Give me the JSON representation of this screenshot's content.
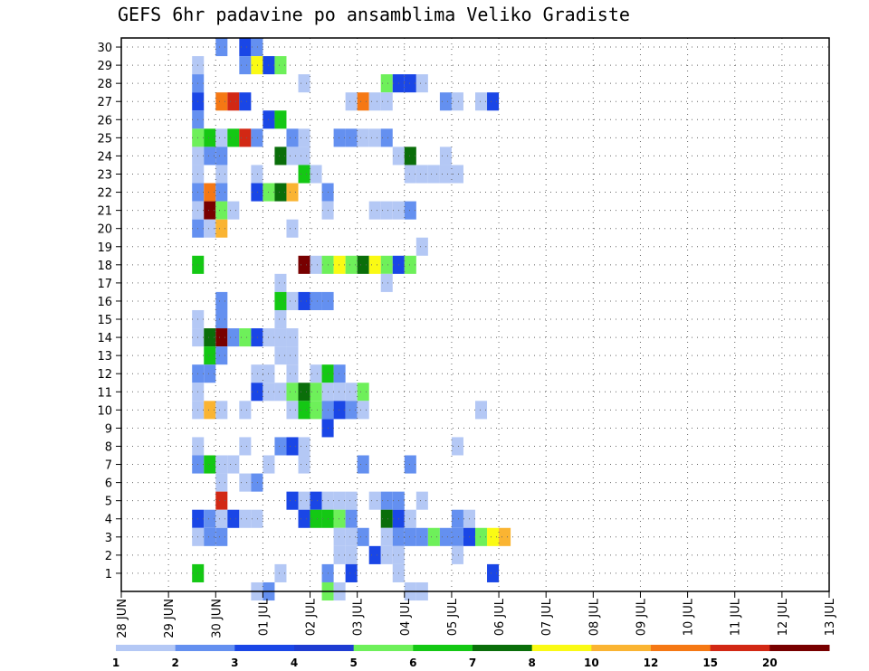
{
  "chart_data": {
    "type": "heatmap",
    "title": "GEFS 6hr padavine po ansamblima Veliko Gradiste",
    "xlabel": "",
    "ylabel": "",
    "x_tick_labels": [
      "28 JUN",
      "29 JUN",
      "30 JUN",
      "01 JUL",
      "02 JUL",
      "03 JUL",
      "04 JUL",
      "05 JUL",
      "06 JUL",
      "07 JUL",
      "08 JUL",
      "09 JUL",
      "10 JUL",
      "11 JUL",
      "12 JUL",
      "13 JUL"
    ],
    "y_tick_labels": [
      "1",
      "2",
      "3",
      "4",
      "5",
      "6",
      "7",
      "8",
      "9",
      "10",
      "11",
      "12",
      "13",
      "14",
      "15",
      "16",
      "17",
      "18",
      "19",
      "20",
      "21",
      "22",
      "23",
      "24",
      "25",
      "26",
      "27",
      "28",
      "29",
      "30"
    ],
    "time_steps_per_day": 4,
    "ylim": [
      0,
      30
    ],
    "grid": true,
    "legend": {
      "placement": "bottom",
      "levels": [
        "1",
        "2",
        "3",
        "4",
        "5",
        "6",
        "7",
        "8",
        "10",
        "12",
        "15",
        "20"
      ],
      "colors": [
        "#b4c8f5",
        "#6490f0",
        "#1a46e6",
        "#1e3cd2",
        "#6ef05a",
        "#14c814",
        "#0a6e0a",
        "#fafa14",
        "#fab432",
        "#f57814",
        "#d22814",
        "#780000"
      ]
    },
    "cells": [
      [
        30,
        8,
        2
      ],
      [
        30,
        10,
        3
      ],
      [
        30,
        11,
        2
      ],
      [
        29,
        6,
        1
      ],
      [
        29,
        10,
        2
      ],
      [
        29,
        11,
        8
      ],
      [
        29,
        12,
        3
      ],
      [
        29,
        13,
        5
      ],
      [
        28,
        6,
        2
      ],
      [
        28,
        15,
        1
      ],
      [
        28,
        22,
        5
      ],
      [
        28,
        23,
        3
      ],
      [
        28,
        24,
        3
      ],
      [
        28,
        25,
        1
      ],
      [
        27,
        6,
        3
      ],
      [
        27,
        8,
        12
      ],
      [
        27,
        9,
        15
      ],
      [
        27,
        10,
        3
      ],
      [
        27,
        19,
        1
      ],
      [
        27,
        20,
        12
      ],
      [
        27,
        21,
        1
      ],
      [
        27,
        22,
        1
      ],
      [
        27,
        27,
        2
      ],
      [
        27,
        28,
        1
      ],
      [
        27,
        30,
        1
      ],
      [
        27,
        31,
        3
      ],
      [
        26,
        6,
        2
      ],
      [
        26,
        12,
        3
      ],
      [
        26,
        13,
        6
      ],
      [
        25,
        6,
        5
      ],
      [
        25,
        7,
        6
      ],
      [
        25,
        8,
        1
      ],
      [
        25,
        9,
        6
      ],
      [
        25,
        10,
        15
      ],
      [
        25,
        11,
        2
      ],
      [
        25,
        14,
        2
      ],
      [
        25,
        15,
        1
      ],
      [
        25,
        18,
        2
      ],
      [
        25,
        19,
        2
      ],
      [
        25,
        20,
        1
      ],
      [
        25,
        21,
        1
      ],
      [
        25,
        22,
        2
      ],
      [
        24,
        6,
        1
      ],
      [
        24,
        7,
        2
      ],
      [
        24,
        8,
        2
      ],
      [
        24,
        13,
        7
      ],
      [
        24,
        14,
        1
      ],
      [
        24,
        15,
        1
      ],
      [
        24,
        23,
        1
      ],
      [
        24,
        24,
        7
      ],
      [
        24,
        27,
        1
      ],
      [
        23,
        6,
        1
      ],
      [
        23,
        8,
        1
      ],
      [
        23,
        11,
        1
      ],
      [
        23,
        15,
        6
      ],
      [
        23,
        16,
        1
      ],
      [
        23,
        24,
        1
      ],
      [
        23,
        25,
        1
      ],
      [
        23,
        26,
        1
      ],
      [
        23,
        27,
        1
      ],
      [
        23,
        28,
        1
      ],
      [
        22,
        6,
        2
      ],
      [
        22,
        7,
        12
      ],
      [
        22,
        8,
        2
      ],
      [
        22,
        11,
        3
      ],
      [
        22,
        12,
        5
      ],
      [
        22,
        13,
        7
      ],
      [
        22,
        14,
        10
      ],
      [
        22,
        17,
        2
      ],
      [
        21,
        6,
        1
      ],
      [
        21,
        7,
        20
      ],
      [
        21,
        8,
        5
      ],
      [
        21,
        9,
        1
      ],
      [
        21,
        17,
        1
      ],
      [
        21,
        21,
        1
      ],
      [
        21,
        22,
        1
      ],
      [
        21,
        23,
        1
      ],
      [
        21,
        24,
        2
      ],
      [
        20,
        6,
        2
      ],
      [
        20,
        7,
        1
      ],
      [
        20,
        8,
        10
      ],
      [
        20,
        14,
        1
      ],
      [
        19,
        25,
        1
      ],
      [
        18,
        6,
        6
      ],
      [
        18,
        15,
        20
      ],
      [
        18,
        16,
        1
      ],
      [
        18,
        17,
        5
      ],
      [
        18,
        18,
        8
      ],
      [
        18,
        19,
        5
      ],
      [
        18,
        20,
        7
      ],
      [
        18,
        21,
        8
      ],
      [
        18,
        22,
        5
      ],
      [
        18,
        23,
        3
      ],
      [
        18,
        24,
        5
      ],
      [
        17,
        13,
        1
      ],
      [
        17,
        22,
        1
      ],
      [
        16,
        8,
        2
      ],
      [
        16,
        13,
        6
      ],
      [
        16,
        14,
        1
      ],
      [
        16,
        15,
        3
      ],
      [
        16,
        16,
        2
      ],
      [
        16,
        17,
        2
      ],
      [
        15,
        6,
        1
      ],
      [
        15,
        8,
        2
      ],
      [
        15,
        13,
        1
      ],
      [
        14,
        6,
        1
      ],
      [
        14,
        7,
        7
      ],
      [
        14,
        8,
        20
      ],
      [
        14,
        9,
        2
      ],
      [
        14,
        10,
        5
      ],
      [
        14,
        11,
        3
      ],
      [
        14,
        12,
        1
      ],
      [
        14,
        13,
        1
      ],
      [
        14,
        14,
        1
      ],
      [
        13,
        7,
        6
      ],
      [
        13,
        8,
        2
      ],
      [
        13,
        13,
        1
      ],
      [
        13,
        14,
        1
      ],
      [
        12,
        6,
        2
      ],
      [
        12,
        7,
        2
      ],
      [
        12,
        11,
        1
      ],
      [
        12,
        12,
        1
      ],
      [
        12,
        14,
        1
      ],
      [
        12,
        16,
        1
      ],
      [
        12,
        17,
        6
      ],
      [
        12,
        18,
        2
      ],
      [
        11,
        6,
        1
      ],
      [
        11,
        11,
        3
      ],
      [
        11,
        12,
        1
      ],
      [
        11,
        13,
        1
      ],
      [
        11,
        14,
        5
      ],
      [
        11,
        15,
        7
      ],
      [
        11,
        16,
        5
      ],
      [
        11,
        17,
        1
      ],
      [
        11,
        18,
        1
      ],
      [
        11,
        19,
        1
      ],
      [
        11,
        20,
        5
      ],
      [
        10,
        6,
        1
      ],
      [
        10,
        7,
        10
      ],
      [
        10,
        8,
        1
      ],
      [
        10,
        10,
        1
      ],
      [
        10,
        14,
        1
      ],
      [
        10,
        15,
        6
      ],
      [
        10,
        16,
        5
      ],
      [
        10,
        17,
        2
      ],
      [
        10,
        18,
        3
      ],
      [
        10,
        19,
        2
      ],
      [
        10,
        20,
        1
      ],
      [
        10,
        30,
        1
      ],
      [
        9,
        17,
        3
      ],
      [
        8,
        6,
        1
      ],
      [
        8,
        10,
        1
      ],
      [
        8,
        13,
        2
      ],
      [
        8,
        14,
        3
      ],
      [
        8,
        15,
        1
      ],
      [
        8,
        28,
        1
      ],
      [
        7,
        6,
        2
      ],
      [
        7,
        7,
        6
      ],
      [
        7,
        8,
        1
      ],
      [
        7,
        9,
        1
      ],
      [
        7,
        12,
        1
      ],
      [
        7,
        15,
        1
      ],
      [
        7,
        20,
        2
      ],
      [
        7,
        24,
        2
      ],
      [
        6,
        8,
        1
      ],
      [
        6,
        10,
        1
      ],
      [
        6,
        11,
        2
      ],
      [
        5,
        8,
        15
      ],
      [
        5,
        14,
        3
      ],
      [
        5,
        15,
        1
      ],
      [
        5,
        16,
        3
      ],
      [
        5,
        17,
        1
      ],
      [
        5,
        18,
        1
      ],
      [
        5,
        19,
        1
      ],
      [
        5,
        21,
        1
      ],
      [
        5,
        22,
        2
      ],
      [
        5,
        23,
        2
      ],
      [
        5,
        25,
        1
      ],
      [
        4,
        6,
        3
      ],
      [
        4,
        7,
        2
      ],
      [
        4,
        8,
        1
      ],
      [
        4,
        9,
        3
      ],
      [
        4,
        10,
        1
      ],
      [
        4,
        11,
        1
      ],
      [
        4,
        15,
        3
      ],
      [
        4,
        16,
        6
      ],
      [
        4,
        17,
        6
      ],
      [
        4,
        18,
        5
      ],
      [
        4,
        19,
        2
      ],
      [
        4,
        22,
        7
      ],
      [
        4,
        23,
        3
      ],
      [
        4,
        24,
        1
      ],
      [
        4,
        28,
        2
      ],
      [
        4,
        29,
        1
      ],
      [
        3,
        6,
        1
      ],
      [
        3,
        7,
        2
      ],
      [
        3,
        8,
        2
      ],
      [
        3,
        18,
        1
      ],
      [
        3,
        19,
        1
      ],
      [
        3,
        20,
        2
      ],
      [
        3,
        22,
        1
      ],
      [
        3,
        23,
        2
      ],
      [
        3,
        24,
        2
      ],
      [
        3,
        25,
        2
      ],
      [
        3,
        26,
        5
      ],
      [
        3,
        27,
        2
      ],
      [
        3,
        28,
        2
      ],
      [
        3,
        29,
        3
      ],
      [
        3,
        30,
        5
      ],
      [
        3,
        31,
        8
      ],
      [
        3,
        32,
        10
      ],
      [
        2,
        18,
        1
      ],
      [
        2,
        19,
        1
      ],
      [
        2,
        21,
        3
      ],
      [
        2,
        22,
        1
      ],
      [
        2,
        23,
        1
      ],
      [
        2,
        28,
        1
      ],
      [
        1,
        6,
        6
      ],
      [
        1,
        13,
        1
      ],
      [
        1,
        17,
        2
      ],
      [
        1,
        19,
        3
      ],
      [
        1,
        23,
        1
      ],
      [
        1,
        31,
        3
      ],
      [
        0,
        11,
        1
      ],
      [
        0,
        12,
        2
      ],
      [
        0,
        17,
        5
      ],
      [
        0,
        18,
        1
      ],
      [
        0,
        24,
        1
      ],
      [
        0,
        25,
        1
      ]
    ]
  }
}
